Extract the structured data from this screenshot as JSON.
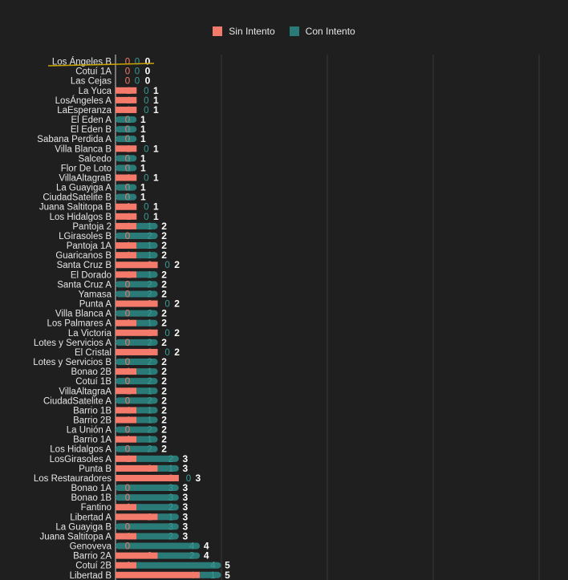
{
  "colors": {
    "background": "#1f1f1f",
    "sin_intento": "#f47a6b",
    "con_intento": "#2a7a78",
    "grid": "#3a3a3a",
    "total_label": "#ffffff",
    "highlight_line": "#c8a400"
  },
  "chart_data": {
    "type": "bar",
    "orientation": "horizontal",
    "stacked": true,
    "legend_position": "top",
    "grid": true,
    "categories": [
      "Los Ángeles B",
      "Cotuí 1A",
      "Las Cejas",
      "La Yuca",
      "LosÁngeles A",
      "LaEsperanza",
      "El Eden A",
      "El Eden B",
      "Sabana Perdida A",
      "Villa Blanca B",
      "Salcedo",
      "Flor De Loto",
      "VillaAltagraB",
      "La Guayiga A",
      "CiudadSatelite B",
      "Juana Saltitopa B",
      "Los Hidalgos B",
      "Pantoja 2",
      "LGirasoles B",
      "Pantoja 1A",
      "Guaricanos B",
      "Santa Cruz B",
      "El Dorado",
      "Santa Cruz A",
      "Yamasa",
      "Punta A",
      "Villa Blanca A",
      "Los Palmares A",
      "La Victoria",
      "Lotes y Servicios A",
      "El Cristal",
      "Lotes y Servicios B",
      "Bonao 2B",
      "Cotuí 1B",
      "VillaAltagraA",
      "CiudadSatelite A",
      "Barrio 1B",
      "Barrio 2B",
      "La Unión A",
      "Barrio 1A",
      "Los Hidalgos A",
      "LosGirasoles A",
      "Punta B",
      "Los Restauradores",
      "Bonao 1A",
      "Bonao 1B",
      "Fantino",
      "Libertad A",
      "La Guayiga B",
      "Juana Saltitopa A",
      "Genoveva",
      "Barrio 2A",
      "Cotuí 2B",
      "Libertad B"
    ],
    "series": [
      {
        "name": "Sin Intento",
        "values": [
          0,
          0,
          0,
          1,
          1,
          1,
          0,
          0,
          0,
          1,
          0,
          0,
          1,
          0,
          0,
          1,
          1,
          1,
          0,
          1,
          1,
          2,
          1,
          0,
          0,
          2,
          0,
          1,
          2,
          0,
          2,
          0,
          1,
          0,
          1,
          0,
          1,
          1,
          0,
          1,
          0,
          1,
          2,
          3,
          0,
          0,
          1,
          2,
          0,
          1,
          0,
          2,
          1,
          4
        ]
      },
      {
        "name": "Con Intento",
        "values": [
          0,
          0,
          0,
          0,
          0,
          0,
          1,
          1,
          1,
          0,
          1,
          1,
          0,
          1,
          1,
          0,
          0,
          1,
          2,
          1,
          1,
          0,
          1,
          2,
          2,
          0,
          2,
          1,
          0,
          2,
          0,
          2,
          1,
          2,
          1,
          2,
          1,
          1,
          2,
          1,
          2,
          2,
          1,
          0,
          3,
          3,
          2,
          1,
          3,
          2,
          4,
          2,
          4,
          1
        ]
      }
    ],
    "totals": [
      0,
      0,
      0,
      1,
      1,
      1,
      1,
      1,
      1,
      1,
      1,
      1,
      1,
      1,
      1,
      1,
      1,
      2,
      2,
      2,
      2,
      2,
      2,
      2,
      2,
      2,
      2,
      2,
      2,
      2,
      2,
      2,
      2,
      2,
      2,
      2,
      2,
      2,
      2,
      2,
      2,
      3,
      3,
      3,
      3,
      3,
      3,
      3,
      3,
      3,
      4,
      4,
      5,
      5
    ],
    "xlim": [
      0,
      5
    ]
  },
  "legend": {
    "sin_label": "Sin Intento",
    "con_label": "Con Intento"
  }
}
